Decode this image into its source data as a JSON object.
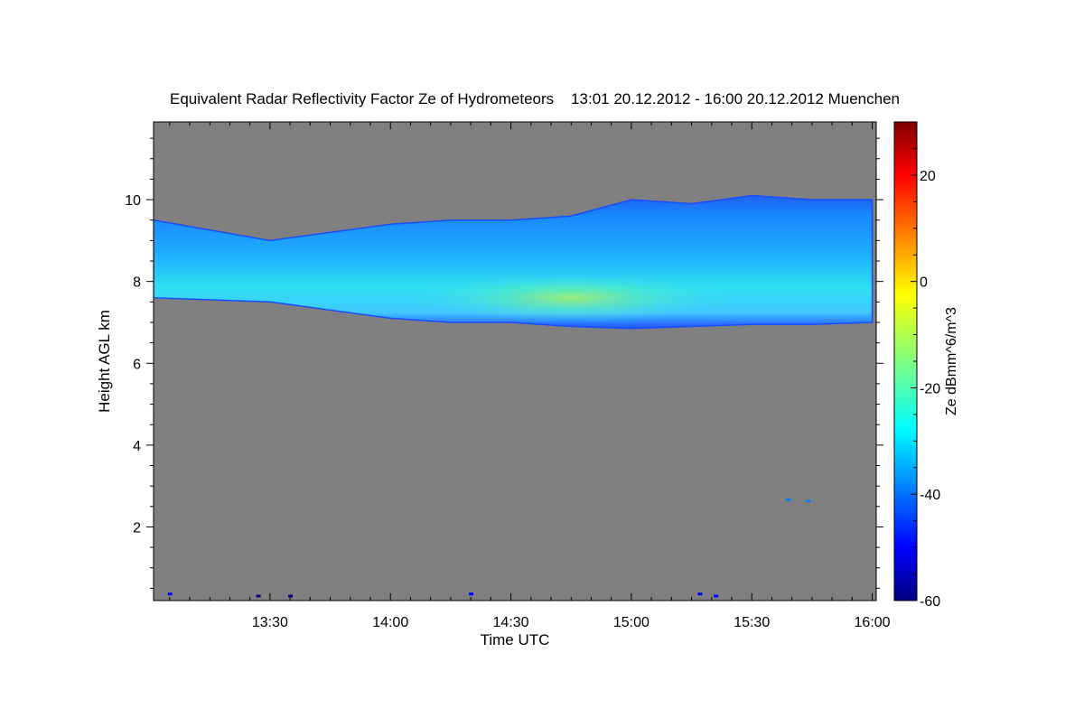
{
  "chart_data": {
    "type": "heatmap",
    "title": "Equivalent Radar Reflectivity Factor Ze of Hydrometeors    13:01 20.12.2012 - 16:00 20.12.2012 Muenchen",
    "xlabel": "Time UTC",
    "ylabel": "Height AGL km",
    "xlim": [
      "13:01",
      "16:01"
    ],
    "x_ticks": [
      "13:30",
      "14:00",
      "14:30",
      "15:00",
      "15:30",
      "16:00"
    ],
    "ylim": [
      0.2,
      11.9
    ],
    "y_ticks": [
      2,
      4,
      6,
      8,
      10
    ],
    "background_color": "#808080",
    "colorbar": {
      "label": "Ze dBmm^6/m^3",
      "range": [
        -60,
        30
      ],
      "ticks": [
        20,
        0,
        -20,
        -40,
        -60
      ],
      "colors": [
        "#00007f",
        "#0000ff",
        "#0080ff",
        "#00ffff",
        "#80ff80",
        "#ffff00",
        "#ff8000",
        "#ff0000",
        "#7f0000"
      ]
    },
    "cloud_layer": {
      "time": [
        "13:01",
        "13:30",
        "13:45",
        "14:00",
        "14:15",
        "14:30",
        "14:45",
        "15:00",
        "15:15",
        "15:30",
        "15:45",
        "16:00"
      ],
      "base_km": [
        7.6,
        7.5,
        7.3,
        7.1,
        7.0,
        7.0,
        6.9,
        6.85,
        6.9,
        6.95,
        6.95,
        7.0
      ],
      "top_km": [
        9.5,
        9.0,
        9.2,
        9.4,
        9.5,
        9.5,
        9.6,
        10.0,
        9.9,
        10.1,
        10.0,
        10.0
      ],
      "peak_ze_dbz": -18
    },
    "clutter_points": [
      {
        "time": "13:05",
        "height_km": 0.35,
        "ze_dbz": -50
      },
      {
        "time": "13:27",
        "height_km": 0.3,
        "ze_dbz": -55
      },
      {
        "time": "13:35",
        "height_km": 0.3,
        "ze_dbz": -55
      },
      {
        "time": "14:20",
        "height_km": 0.35,
        "ze_dbz": -50
      },
      {
        "time": "15:17",
        "height_km": 0.35,
        "ze_dbz": -50
      },
      {
        "time": "15:21",
        "height_km": 0.3,
        "ze_dbz": -50
      },
      {
        "time": "15:39",
        "height_km": 2.65,
        "ze_dbz": -40
      },
      {
        "time": "15:44",
        "height_km": 2.62,
        "ze_dbz": -40
      }
    ]
  }
}
